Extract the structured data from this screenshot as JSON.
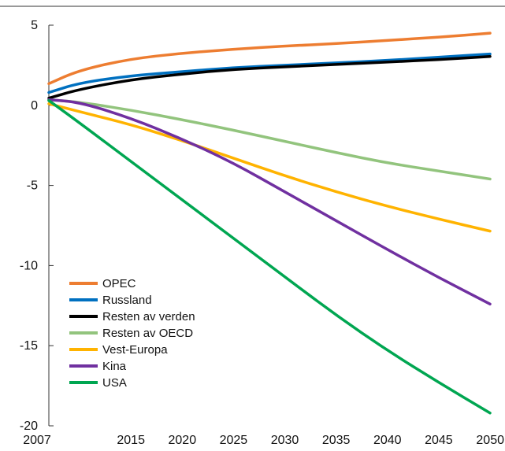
{
  "chart_data": {
    "type": "line",
    "title": "",
    "xlabel": "",
    "ylabel": "",
    "xlim": [
      2007,
      2050
    ],
    "ylim": [
      -20,
      5
    ],
    "x_ticks": [
      2007,
      2015,
      2020,
      2025,
      2030,
      2035,
      2040,
      2045,
      2050
    ],
    "y_ticks": [
      5,
      0,
      -5,
      -10,
      -15,
      -20
    ],
    "x_tick_labels": [
      "2007",
      "2015",
      "2020",
      "2025",
      "2030",
      "2035",
      "2040",
      "2045",
      "2050"
    ],
    "y_tick_labels": [
      "5",
      "0",
      "-5",
      "-10",
      "-15",
      "-20"
    ],
    "grid": false,
    "legend_position": "bottom-left",
    "series": [
      {
        "name": "OPEC",
        "color": "#ed7d31",
        "points": [
          [
            2007,
            1.35
          ],
          [
            2010,
            2.2
          ],
          [
            2015,
            2.9
          ],
          [
            2020,
            3.25
          ],
          [
            2025,
            3.5
          ],
          [
            2030,
            3.7
          ],
          [
            2035,
            3.85
          ],
          [
            2040,
            4.05
          ],
          [
            2045,
            4.25
          ],
          [
            2050,
            4.5
          ]
        ]
      },
      {
        "name": "Russland",
        "color": "#0070c0",
        "points": [
          [
            2007,
            0.8
          ],
          [
            2010,
            1.4
          ],
          [
            2015,
            1.85
          ],
          [
            2020,
            2.1
          ],
          [
            2025,
            2.35
          ],
          [
            2030,
            2.5
          ],
          [
            2035,
            2.65
          ],
          [
            2040,
            2.8
          ],
          [
            2045,
            3.0
          ],
          [
            2050,
            3.2
          ]
        ]
      },
      {
        "name": "Resten av verden",
        "color": "#000000",
        "points": [
          [
            2007,
            0.45
          ],
          [
            2010,
            1.0
          ],
          [
            2015,
            1.6
          ],
          [
            2020,
            1.95
          ],
          [
            2025,
            2.25
          ],
          [
            2030,
            2.4
          ],
          [
            2035,
            2.55
          ],
          [
            2040,
            2.7
          ],
          [
            2045,
            2.85
          ],
          [
            2050,
            3.05
          ]
        ]
      },
      {
        "name": "Resten av OECD",
        "color": "#92c47d",
        "points": [
          [
            2007,
            0.35
          ],
          [
            2010,
            0.2
          ],
          [
            2015,
            -0.3
          ],
          [
            2020,
            -0.9
          ],
          [
            2025,
            -1.55
          ],
          [
            2030,
            -2.25
          ],
          [
            2035,
            -2.95
          ],
          [
            2040,
            -3.6
          ],
          [
            2045,
            -4.1
          ],
          [
            2050,
            -4.6
          ]
        ]
      },
      {
        "name": "Vest-Europa",
        "color": "#ffb300",
        "points": [
          [
            2007,
            0.1
          ],
          [
            2010,
            -0.4
          ],
          [
            2015,
            -1.2
          ],
          [
            2020,
            -2.2
          ],
          [
            2025,
            -3.3
          ],
          [
            2030,
            -4.4
          ],
          [
            2035,
            -5.4
          ],
          [
            2040,
            -6.3
          ],
          [
            2045,
            -7.1
          ],
          [
            2050,
            -7.85
          ]
        ]
      },
      {
        "name": "Kina",
        "color": "#7030a0",
        "points": [
          [
            2007,
            0.35
          ],
          [
            2010,
            0.2
          ],
          [
            2015,
            -0.8
          ],
          [
            2020,
            -2.1
          ],
          [
            2025,
            -3.6
          ],
          [
            2030,
            -5.4
          ],
          [
            2035,
            -7.2
          ],
          [
            2040,
            -9.0
          ],
          [
            2045,
            -10.75
          ],
          [
            2050,
            -12.4
          ]
        ]
      },
      {
        "name": "USA",
        "color": "#00a651",
        "points": [
          [
            2007,
            0.3
          ],
          [
            2010,
            -1.1
          ],
          [
            2015,
            -3.5
          ],
          [
            2020,
            -5.9
          ],
          [
            2025,
            -8.3
          ],
          [
            2030,
            -10.7
          ],
          [
            2035,
            -13.1
          ],
          [
            2040,
            -15.3
          ],
          [
            2045,
            -17.3
          ],
          [
            2050,
            -19.2
          ]
        ]
      }
    ]
  }
}
